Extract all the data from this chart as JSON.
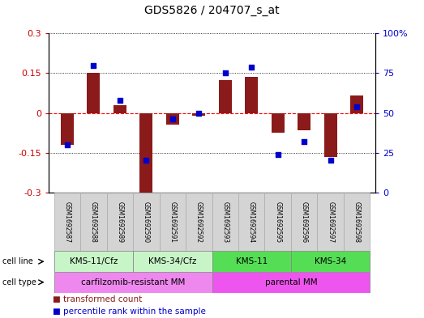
{
  "title": "GDS5826 / 204707_s_at",
  "samples": [
    "GSM1692587",
    "GSM1692588",
    "GSM1692589",
    "GSM1692590",
    "GSM1692591",
    "GSM1692592",
    "GSM1692593",
    "GSM1692594",
    "GSM1692595",
    "GSM1692596",
    "GSM1692597",
    "GSM1692598"
  ],
  "transformed_count": [
    -0.12,
    0.152,
    0.03,
    -0.305,
    -0.045,
    -0.01,
    0.125,
    0.135,
    -0.075,
    -0.065,
    -0.165,
    0.065
  ],
  "percentile_rank": [
    30,
    80,
    58,
    20,
    46,
    50,
    75,
    79,
    24,
    32,
    20,
    54
  ],
  "cell_line_groups": [
    {
      "label": "KMS-11/Cfz",
      "start": 0,
      "end": 3,
      "color": "#b3f0b3"
    },
    {
      "label": "KMS-34/Cfz",
      "start": 3,
      "end": 6,
      "color": "#b3f0b3"
    },
    {
      "label": "KMS-11",
      "start": 6,
      "end": 9,
      "color": "#55dd55"
    },
    {
      "label": "KMS-34",
      "start": 9,
      "end": 12,
      "color": "#55dd55"
    }
  ],
  "cell_type_groups": [
    {
      "label": "carfilzomib-resistant MM",
      "start": 0,
      "end": 6,
      "color": "#ee88ee"
    },
    {
      "label": "parental MM",
      "start": 6,
      "end": 12,
      "color": "#ee88ee"
    }
  ],
  "bar_color": "#8B1A1A",
  "dot_color": "#0000CC",
  "ylim_left": [
    -0.3,
    0.3
  ],
  "ylim_right": [
    0,
    100
  ],
  "yticks_left": [
    -0.3,
    -0.15,
    0.0,
    0.15,
    0.3
  ],
  "ytick_labels_left": [
    "-0.3",
    "-0.15",
    "0",
    "0.15",
    "0.3"
  ],
  "yticks_right": [
    0,
    25,
    50,
    75,
    100
  ],
  "ytick_labels_right": [
    "0",
    "25",
    "50",
    "75",
    "100%"
  ],
  "bar_width": 0.5,
  "dot_size": 22
}
